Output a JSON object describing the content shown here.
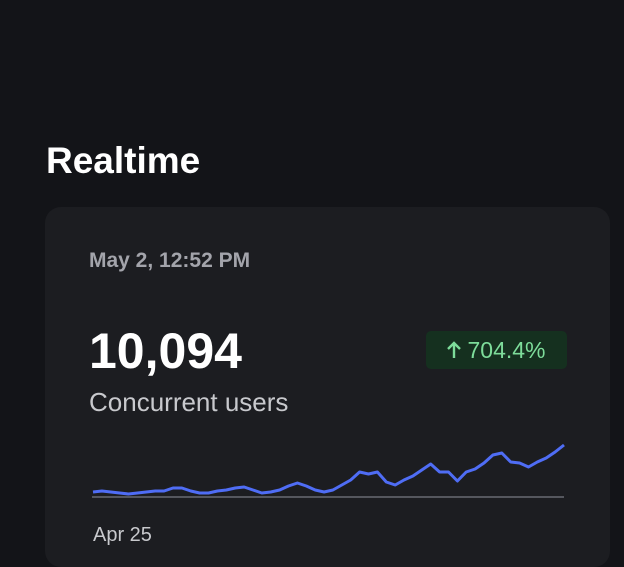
{
  "header": {
    "title": "Realtime"
  },
  "card": {
    "timestamp": "May 2, 12:52 PM",
    "value": "10,094",
    "change": "704.4%",
    "label": "Concurrent users",
    "sparkline": {
      "values": [
        5,
        6,
        5,
        4,
        3,
        4,
        5,
        6,
        6,
        9,
        9,
        6,
        4,
        4,
        6,
        7,
        9,
        10,
        7,
        4,
        5,
        7,
        11,
        14,
        11,
        7,
        5,
        7,
        12,
        17,
        25,
        23,
        25,
        15,
        12,
        17,
        21,
        27,
        33,
        25,
        25,
        16,
        25,
        28,
        34,
        42,
        44,
        35,
        34,
        30,
        35,
        39,
        45,
        52
      ],
      "start_label": "Apr 25",
      "color": "#4f6df5"
    }
  }
}
